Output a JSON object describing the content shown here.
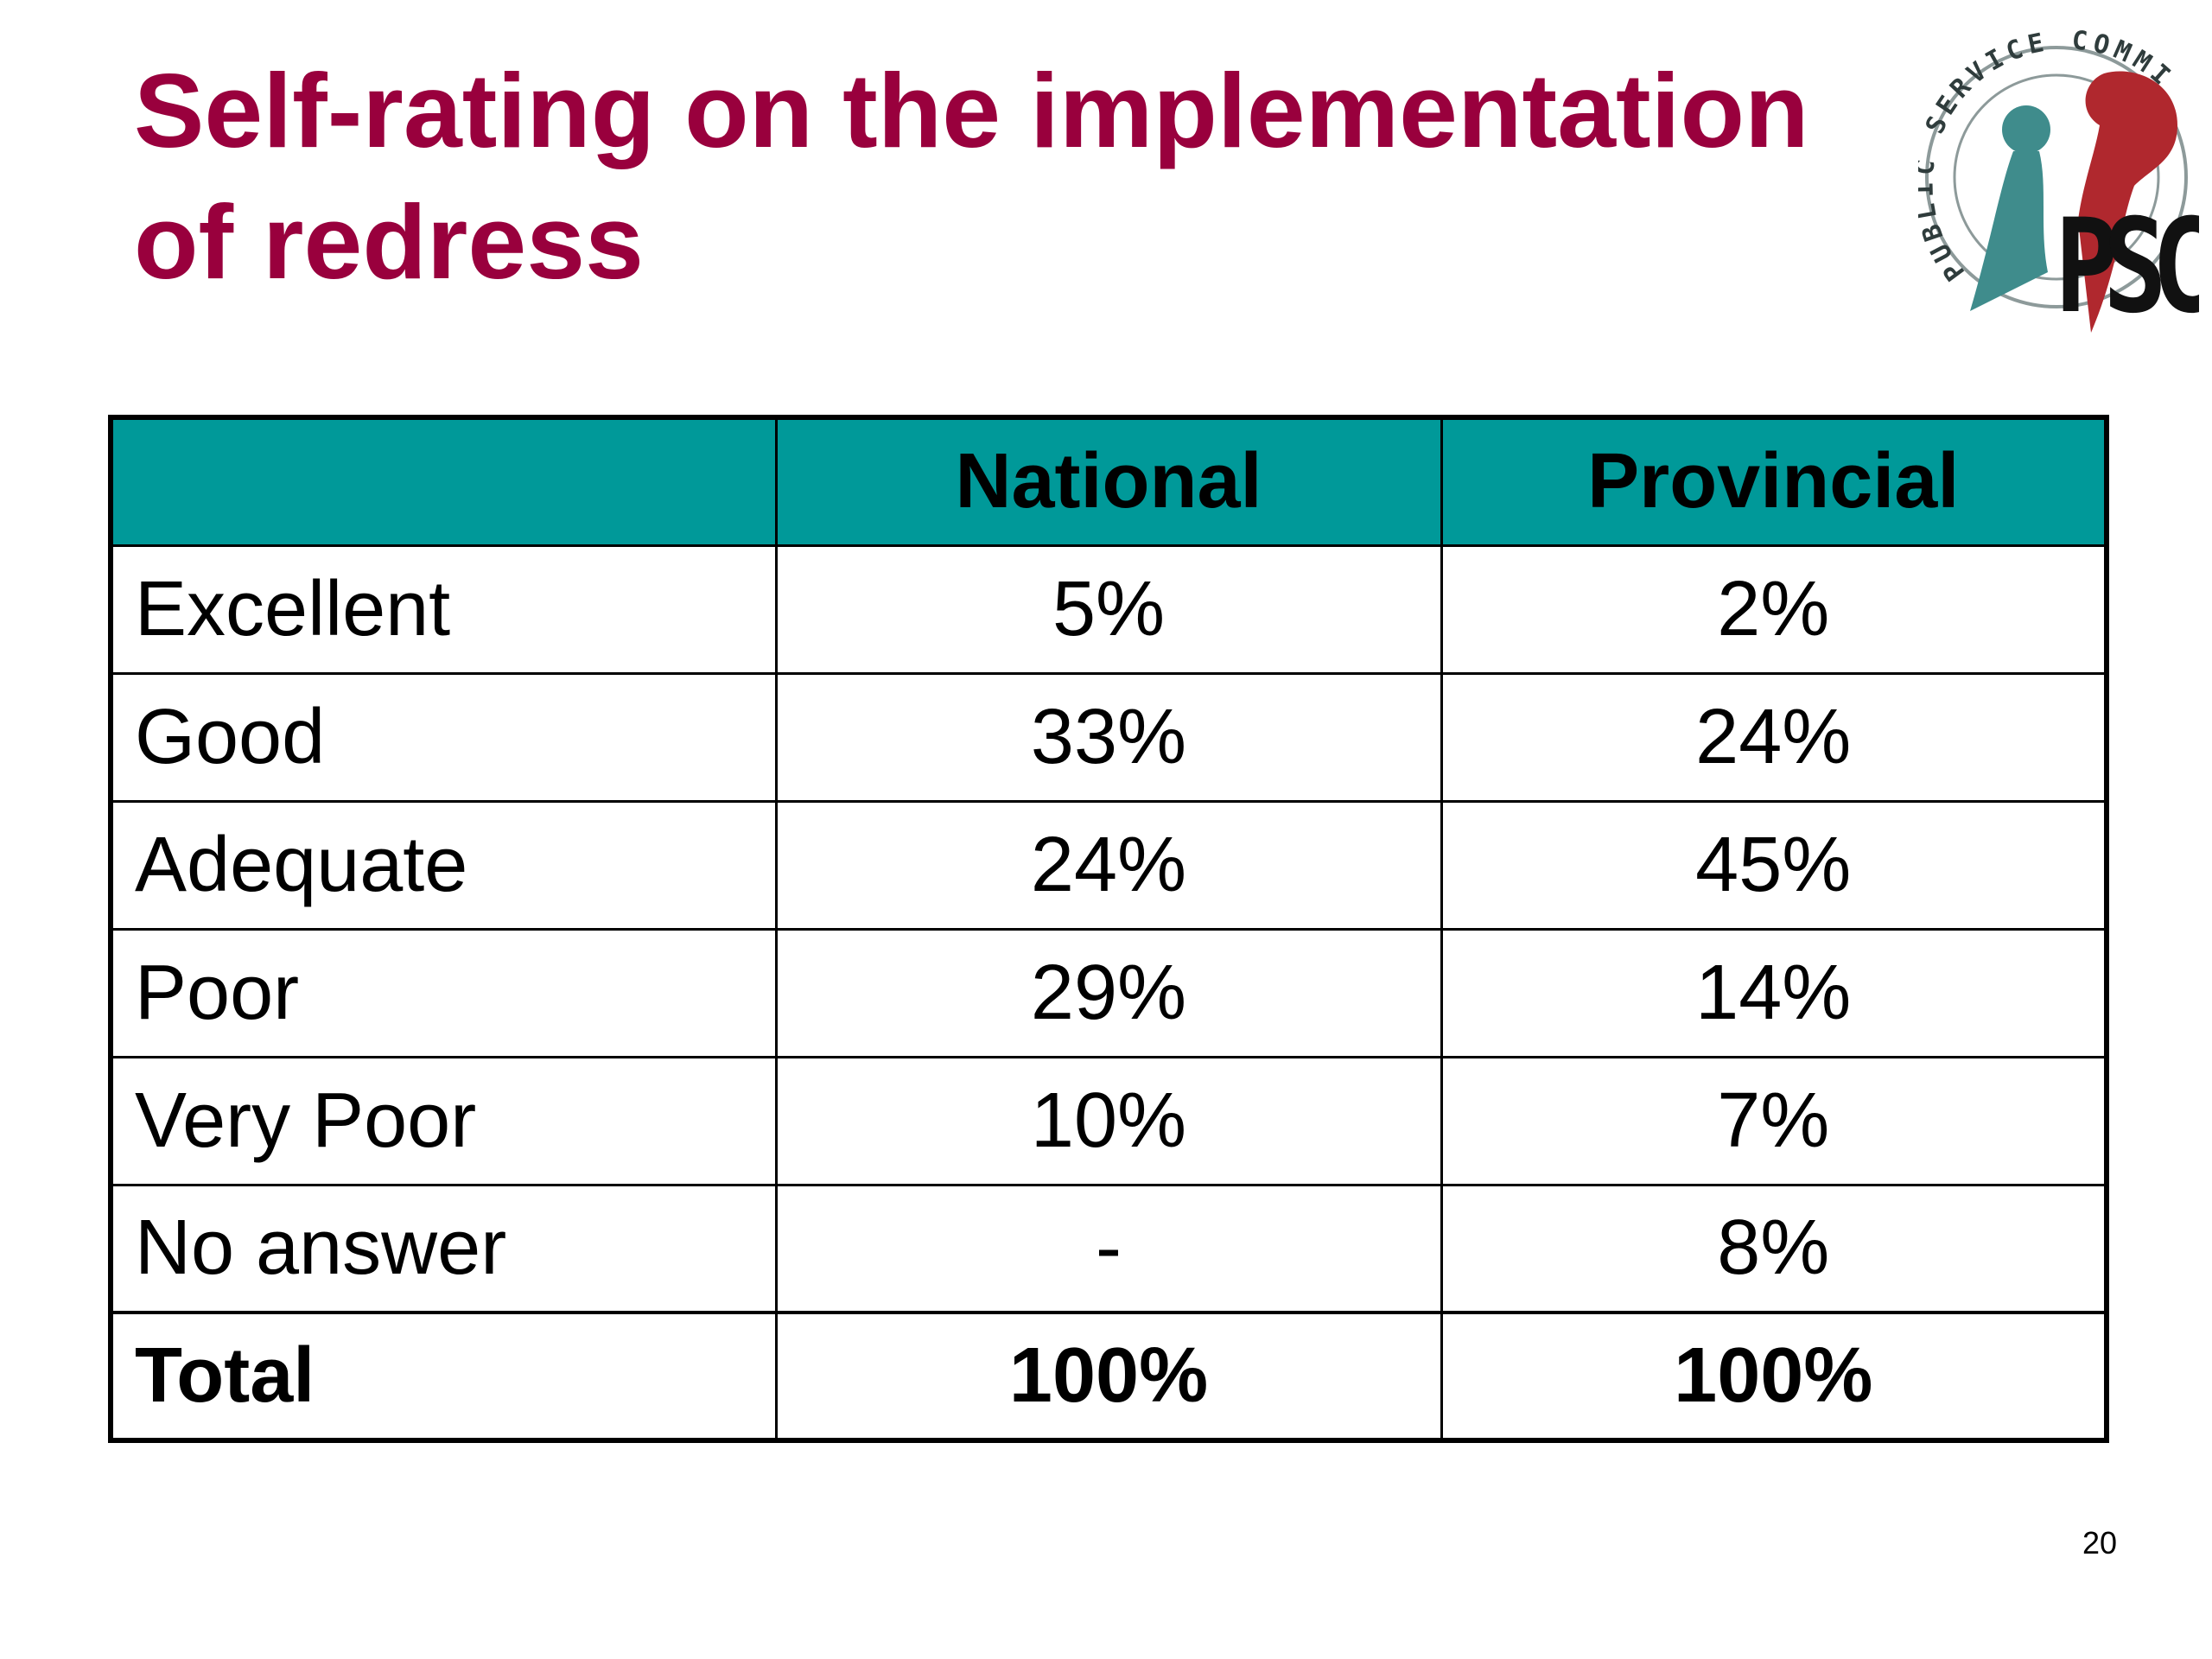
{
  "slide": {
    "title_line1": "Self-rating on the implementation",
    "title_line2": "of redress",
    "page_number": "20",
    "title_color": "#99003d"
  },
  "logo": {
    "name": "psc-logo",
    "ring_text": "PUBLIC SERVICE COMMISSION",
    "letters": "PSC"
  },
  "table": {
    "header_color": "#009999",
    "columns": [
      "",
      "National",
      "Provincial"
    ],
    "rows": [
      {
        "label": "Excellent",
        "national": "5%",
        "provincial": "2%"
      },
      {
        "label": "Good",
        "national": "33%",
        "provincial": "24%"
      },
      {
        "label": "Adequate",
        "national": "24%",
        "provincial": "45%"
      },
      {
        "label": "Poor",
        "national": "29%",
        "provincial": "14%"
      },
      {
        "label": "Very Poor",
        "national": "10%",
        "provincial": "7%"
      },
      {
        "label": "No answer",
        "national": "-",
        "provincial": "8%"
      }
    ],
    "total": {
      "label": "Total",
      "national": "100%",
      "provincial": "100%"
    }
  }
}
